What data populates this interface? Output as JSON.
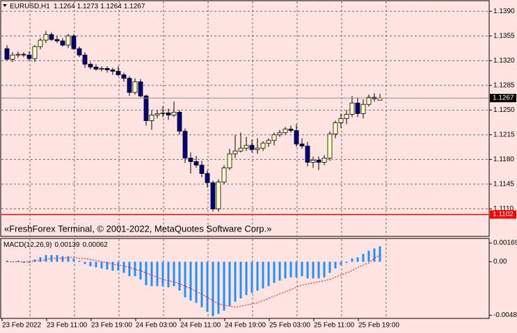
{
  "chart_data": [
    {
      "type": "candlestick",
      "title": "EURUSD,H1",
      "annotation": "«FreshForex Terminal, © 2001-2022, MetaQuotes Software Corp.»",
      "bull_color": "#ffffc8",
      "bear_color": "#000080",
      "ylim": [
        1.1071,
        1.1405
      ],
      "yticks": [
        {
          "value": 1.139,
          "label": "1.1390"
        },
        1.1355,
        {
          "value": 1.132,
          "label": "1.1320"
        },
        1.1285,
        {
          "value": 1.125,
          "label": "1.1250"
        },
        1.1215,
        {
          "value": 1.118,
          "label": "1.1180"
        },
        1.1145,
        {
          "value": 1.111,
          "label": "1.1110"
        }
      ],
      "grid": true,
      "last_price": 1.1267,
      "last_price_color": "#000000",
      "level": 1.1102,
      "level_color": "#ff0000",
      "candles": [
        [
          1.1337,
          1.1342,
          1.132,
          1.1322
        ],
        [
          1.1322,
          1.1332,
          1.1318,
          1.1328
        ],
        [
          1.1328,
          1.1333,
          1.1324,
          1.1329
        ],
        [
          1.1329,
          1.1332,
          1.1325,
          1.1328
        ],
        [
          1.1328,
          1.1333,
          1.132,
          1.1323
        ],
        [
          1.1323,
          1.1342,
          1.1318,
          1.134
        ],
        [
          1.134,
          1.1352,
          1.1336,
          1.1349
        ],
        [
          1.1349,
          1.1362,
          1.1345,
          1.1357
        ],
        [
          1.1357,
          1.136,
          1.1348,
          1.135
        ],
        [
          1.135,
          1.1355,
          1.1345,
          1.1348
        ],
        [
          1.1348,
          1.1352,
          1.134,
          1.1342
        ],
        [
          1.1342,
          1.1358,
          1.1338,
          1.1355
        ],
        [
          1.1355,
          1.1358,
          1.1335,
          1.1337
        ],
        [
          1.1337,
          1.134,
          1.1325,
          1.1328
        ],
        [
          1.1328,
          1.1332,
          1.131,
          1.1315
        ],
        [
          1.1315,
          1.1318,
          1.1308,
          1.1311
        ],
        [
          1.1311,
          1.1315,
          1.1306,
          1.1308
        ],
        [
          1.1308,
          1.1312,
          1.1305,
          1.1309
        ],
        [
          1.1309,
          1.1312,
          1.1303,
          1.1307
        ],
        [
          1.1307,
          1.131,
          1.13,
          1.1305
        ],
        [
          1.1305,
          1.1312,
          1.1298,
          1.13
        ],
        [
          1.13,
          1.1303,
          1.129,
          1.1295
        ],
        [
          1.1295,
          1.1298,
          1.127,
          1.1275
        ],
        [
          1.1275,
          1.1295,
          1.1272,
          1.129
        ],
        [
          1.129,
          1.1294,
          1.1268,
          1.127
        ],
        [
          1.127,
          1.1272,
          1.1228,
          1.1235
        ],
        [
          1.1235,
          1.125,
          1.1222,
          1.1243
        ],
        [
          1.1243,
          1.125,
          1.1238,
          1.1245
        ],
        [
          1.1245,
          1.1255,
          1.124,
          1.1246
        ],
        [
          1.1246,
          1.1252,
          1.1236,
          1.1243
        ],
        [
          1.1243,
          1.1262,
          1.124,
          1.1247
        ],
        [
          1.1247,
          1.125,
          1.1215,
          1.122
        ],
        [
          1.122,
          1.1224,
          1.1175,
          1.1182
        ],
        [
          1.1182,
          1.119,
          1.116,
          1.1177
        ],
        [
          1.1177,
          1.1185,
          1.1168,
          1.1172
        ],
        [
          1.1172,
          1.1178,
          1.1155,
          1.116
        ],
        [
          1.116,
          1.1165,
          1.114,
          1.1147
        ],
        [
          1.1147,
          1.115,
          1.1106,
          1.111
        ],
        [
          1.111,
          1.1152,
          1.1106,
          1.1148
        ],
        [
          1.1148,
          1.1172,
          1.1145,
          1.1168
        ],
        [
          1.1168,
          1.1195,
          1.1165,
          1.1188
        ],
        [
          1.1188,
          1.1215,
          1.1182,
          1.1192
        ],
        [
          1.1192,
          1.1218,
          1.119,
          1.1196
        ],
        [
          1.1196,
          1.1212,
          1.1192,
          1.12
        ],
        [
          1.12,
          1.1208,
          1.119,
          1.1194
        ],
        [
          1.1194,
          1.121,
          1.1188,
          1.1196
        ],
        [
          1.1196,
          1.1206,
          1.1192,
          1.1203
        ],
        [
          1.1203,
          1.121,
          1.1198,
          1.1207
        ],
        [
          1.1207,
          1.1218,
          1.12,
          1.1215
        ],
        [
          1.1215,
          1.1222,
          1.1212,
          1.1218
        ],
        [
          1.1218,
          1.1226,
          1.1215,
          1.1223
        ],
        [
          1.1223,
          1.1228,
          1.1218,
          1.1221
        ],
        [
          1.1221,
          1.123,
          1.1198,
          1.1202
        ],
        [
          1.1202,
          1.121,
          1.1195,
          1.1199
        ],
        [
          1.1199,
          1.1205,
          1.117,
          1.1176
        ],
        [
          1.1176,
          1.1184,
          1.1168,
          1.1179
        ],
        [
          1.1179,
          1.1184,
          1.1165,
          1.1176
        ],
        [
          1.1176,
          1.1186,
          1.1172,
          1.1182
        ],
        [
          1.1182,
          1.122,
          1.1178,
          1.1216
        ],
        [
          1.1216,
          1.1235,
          1.121,
          1.1232
        ],
        [
          1.1232,
          1.1245,
          1.1225,
          1.1238
        ],
        [
          1.1238,
          1.125,
          1.123,
          1.1244
        ],
        [
          1.1244,
          1.127,
          1.124,
          1.126
        ],
        [
          1.126,
          1.1268,
          1.124,
          1.1245
        ],
        [
          1.1245,
          1.1265,
          1.1238,
          1.1258
        ],
        [
          1.1258,
          1.1272,
          1.1255,
          1.1268
        ],
        [
          1.1268,
          1.1274,
          1.1262,
          1.1266
        ],
        [
          1.1264,
          1.1273,
          1.1264,
          1.1267
        ]
      ]
    },
    {
      "type": "macd",
      "title": "MACD(12,26,9)",
      "ylim": [
        -0.0051,
        0.0021
      ],
      "yticks": [
        0.00169,
        {
          "value": 0,
          "label": "0.00"
        },
        -0.00481
      ],
      "categories": [
        "23 Feb 2022",
        null,
        null,
        null,
        null,
        null,
        null,
        null,
        "23 Feb 11:00",
        null,
        null,
        null,
        null,
        null,
        null,
        null,
        "23 Feb 19:00",
        null,
        null,
        null,
        null,
        null,
        null,
        null,
        "24 Feb 03:00",
        null,
        null,
        null,
        null,
        null,
        null,
        null,
        "24 Feb 11:00",
        null,
        null,
        null,
        null,
        null,
        null,
        null,
        "24 Feb 19:00",
        null,
        null,
        null,
        null,
        null,
        null,
        null,
        "25 Feb 03:00",
        null,
        null,
        null,
        null,
        null,
        null,
        null,
        "25 Feb 11:00",
        null,
        null,
        null,
        null,
        null,
        null,
        null,
        "25 Feb 19:00",
        null,
        null,
        null
      ],
      "series": [
        {
          "name": "MACD",
          "color": "#1e90ff",
          "values": [
            0.0001,
            0,
            0.0001,
            -0.0001,
            -0.0001,
            0.0002,
            0.0004,
            0.0006,
            0.0006,
            0.0006,
            0.0005,
            0.0005,
            0.0003,
            0.0001,
            -0.0002,
            -0.0004,
            -0.0005,
            -0.0006,
            -0.0007,
            -0.0008,
            -0.0008,
            -0.001,
            -0.0013,
            -0.0013,
            -0.0016,
            -0.0021,
            -0.0022,
            -0.0022,
            -0.0022,
            -0.0023,
            -0.0022,
            -0.0026,
            -0.0032,
            -0.0035,
            -0.0037,
            -0.0041,
            -0.0045,
            -0.0049,
            -0.0047,
            -0.0044,
            -0.004,
            -0.0036,
            -0.0033,
            -0.003,
            -0.0028,
            -0.0026,
            -0.0024,
            -0.0022,
            -0.0019,
            -0.0017,
            -0.0015,
            -0.0014,
            -0.0014,
            -0.0013,
            -0.0015,
            -0.0015,
            -0.0015,
            -0.0014,
            -0.001,
            -0.0006,
            -0.0003,
            -0.0001,
            0.0003,
            0.0004,
            0.0007,
            0.001,
            0.0012,
            0.00139
          ]
        },
        {
          "name": "Signal",
          "color": "#ff0000",
          "values": [
            0,
            0,
            0,
            0,
            0,
            0.0001,
            0.0001,
            0.0002,
            0.0003,
            0.0003,
            0.0003,
            0.0004,
            0.0004,
            0.0003,
            0.0003,
            0.0002,
            0.0001,
            0,
            -0.0001,
            -0.0002,
            -0.0003,
            -0.0004,
            -0.0005,
            -0.0007,
            -0.0008,
            -0.001,
            -0.0012,
            -0.0014,
            -0.0016,
            -0.0017,
            -0.0018,
            -0.002,
            -0.0022,
            -0.0024,
            -0.0027,
            -0.0029,
            -0.0032,
            -0.0035,
            -0.0038,
            -0.0039,
            -0.004,
            -0.0041,
            -0.004,
            -0.0039,
            -0.0038,
            -0.0037,
            -0.0035,
            -0.0033,
            -0.0031,
            -0.0029,
            -0.0027,
            -0.0025,
            -0.0023,
            -0.0021,
            -0.002,
            -0.0019,
            -0.0018,
            -0.0017,
            -0.0016,
            -0.0014,
            -0.0012,
            -0.001,
            -0.0008,
            -0.0005,
            -0.0003,
            -0.0001,
            0.0003,
            0.00062
          ]
        }
      ]
    }
  ]
}
